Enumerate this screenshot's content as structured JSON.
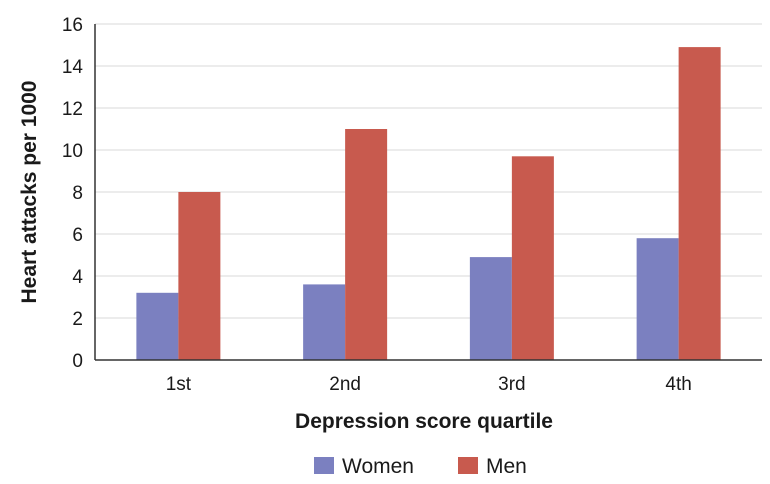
{
  "chart_data": {
    "type": "bar",
    "title": "",
    "xlabel": "Depression score quartile",
    "ylabel": "Heart attacks per 1000",
    "categories": [
      "1st",
      "2nd",
      "3rd",
      "4th"
    ],
    "series": [
      {
        "name": "Women",
        "values": [
          3.2,
          3.6,
          4.9,
          5.8
        ],
        "color": "#7b80c0"
      },
      {
        "name": "Men",
        "values": [
          8.0,
          11.0,
          9.7,
          14.9
        ],
        "color": "#c85a4e"
      }
    ],
    "ylim": [
      0,
      16
    ],
    "yticks": [
      0,
      2,
      4,
      6,
      8,
      10,
      12,
      14,
      16
    ],
    "grid": true,
    "legend_position": "bottom"
  }
}
